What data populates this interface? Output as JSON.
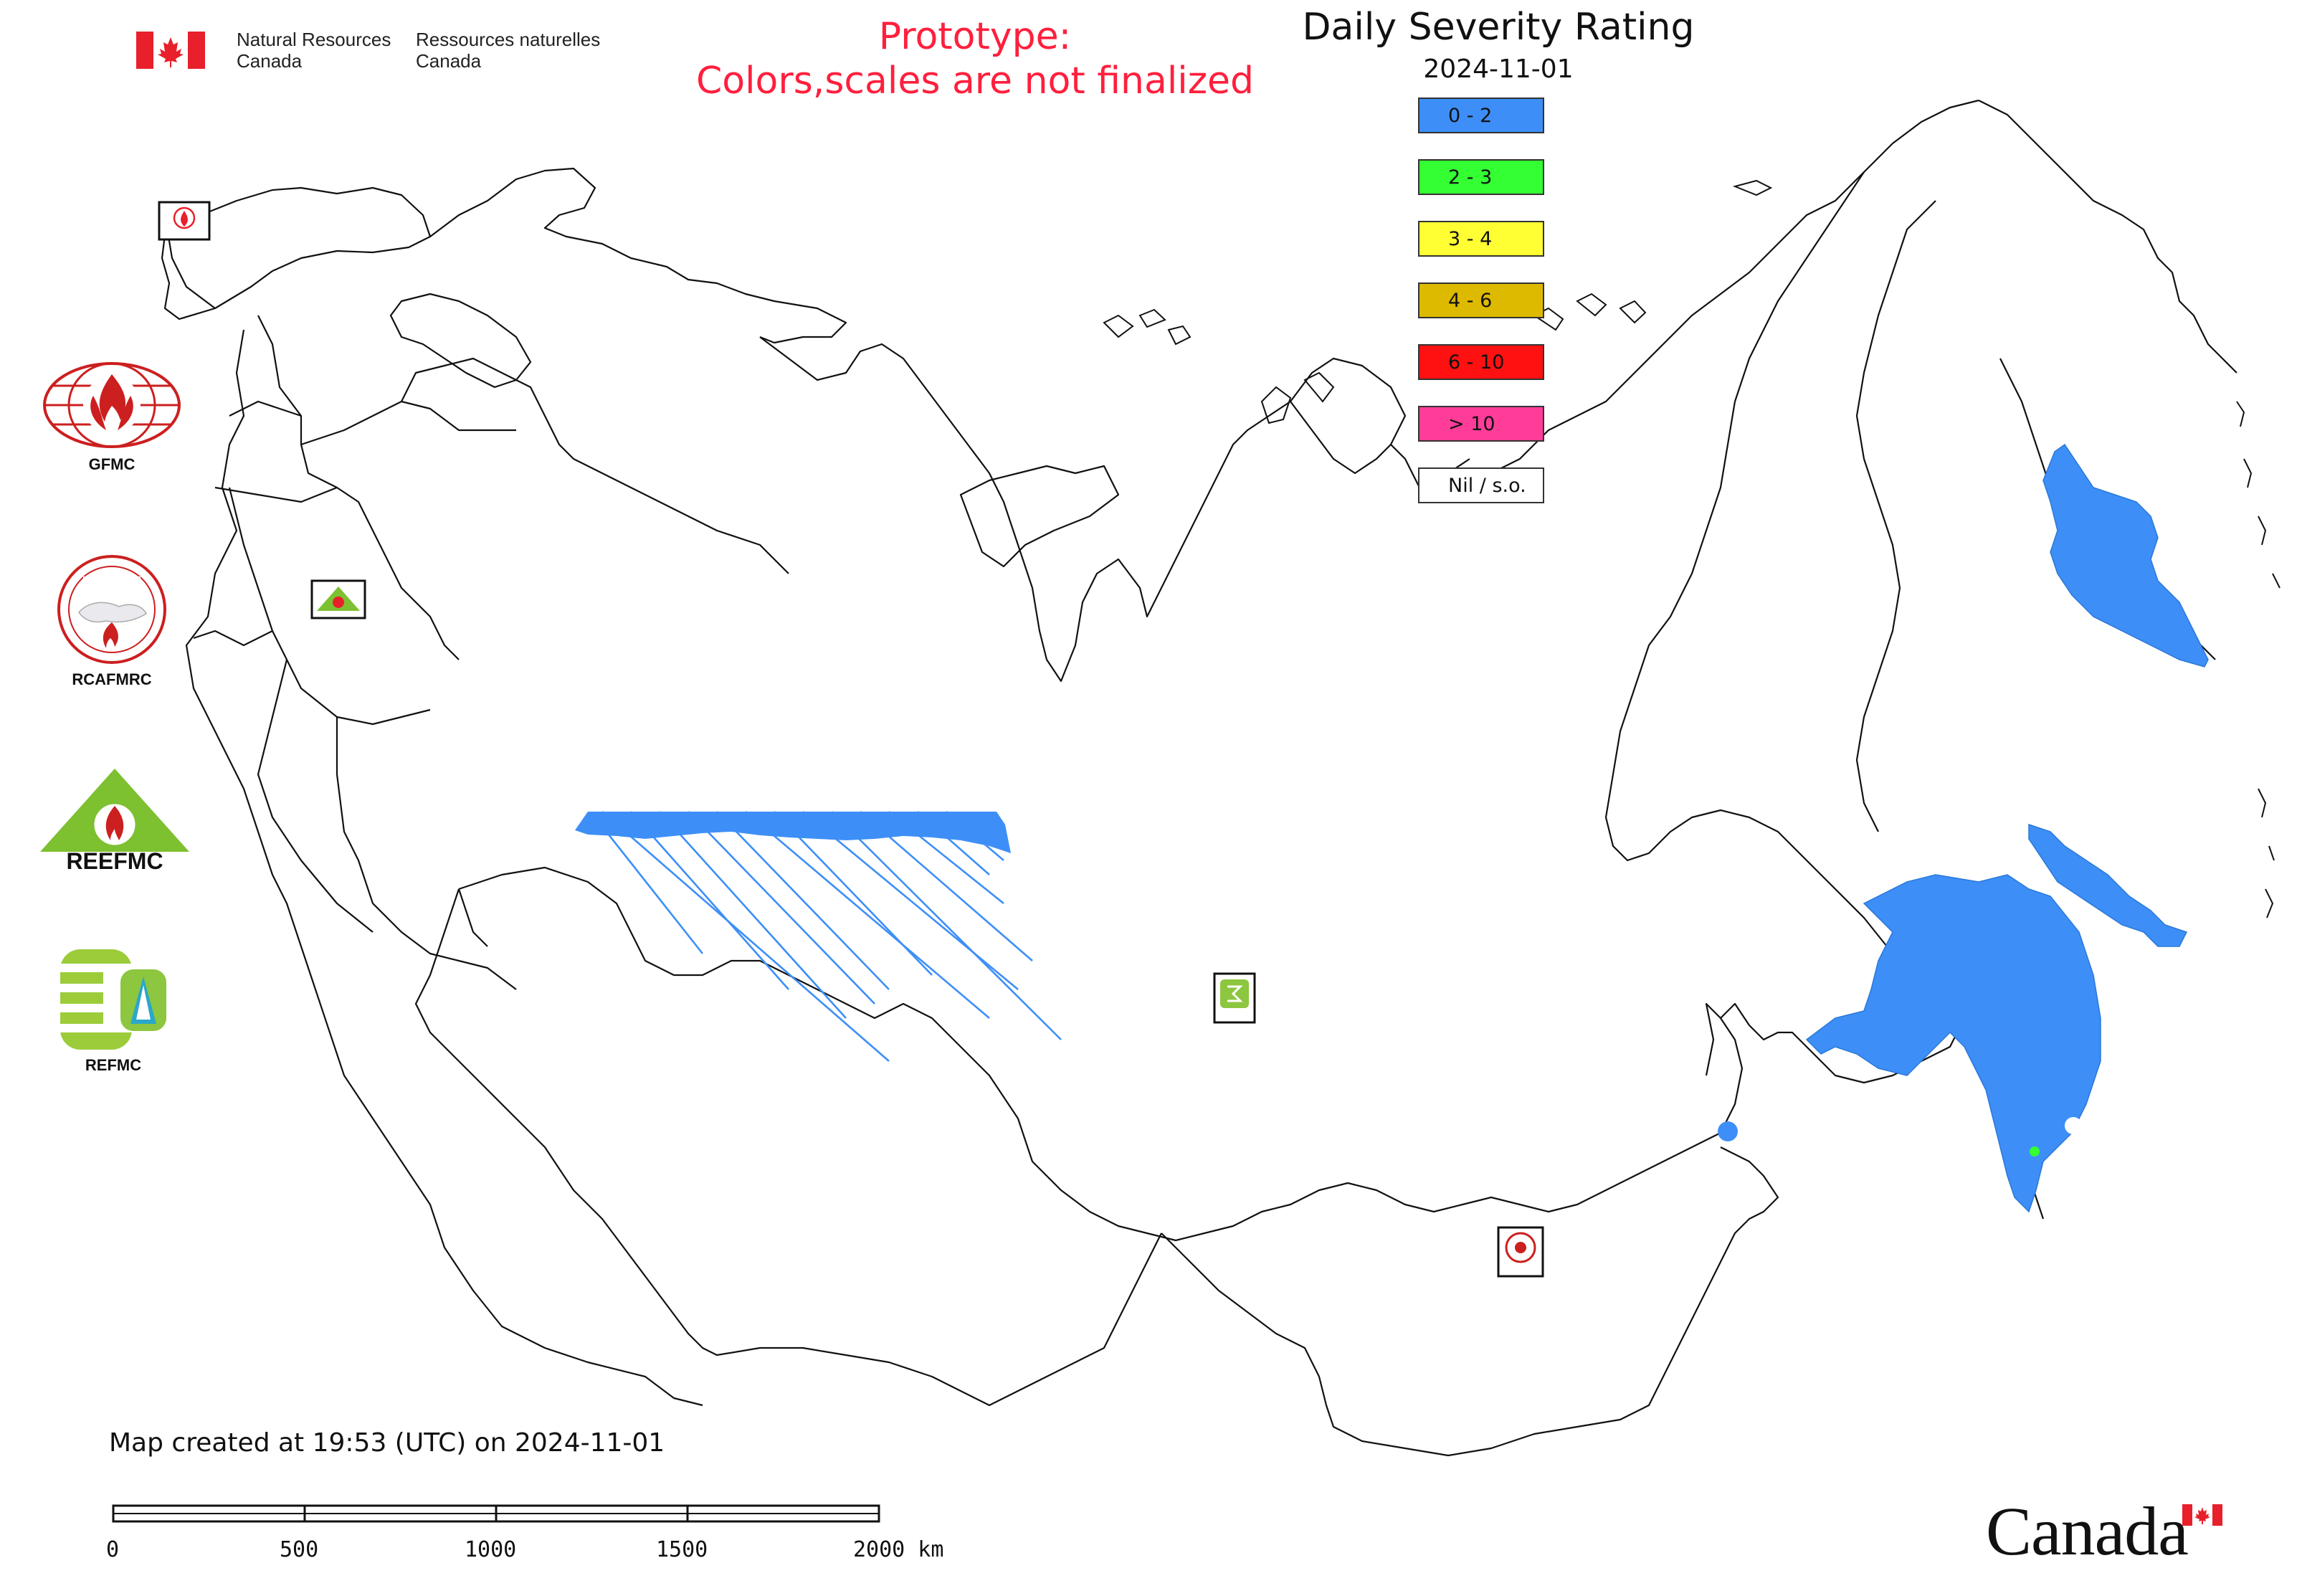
{
  "header": {
    "org_en_line1": "Natural Resources",
    "org_en_line2": "Canada",
    "org_fr_line1": "Ressources naturelles",
    "org_fr_line2": "Canada",
    "prototype_line1": "Prototype:",
    "prototype_line2": "Colors,scales are not finalized"
  },
  "legend": {
    "title": "Daily Severity Rating",
    "date": "2024-11-01",
    "items": [
      {
        "label": "0 - 2",
        "color": "#3d8ff7"
      },
      {
        "label": "2 - 3",
        "color": "#33ff33"
      },
      {
        "label": "3 - 4",
        "color": "#ffff33"
      },
      {
        "label": "4 - 6",
        "color": "#ddb900"
      },
      {
        "label": "6 - 10",
        "color": "#ff1111"
      },
      {
        "label": "> 10",
        "color": "#ff3d99"
      },
      {
        "label": "Nil / s.o.",
        "color": "#ffffff"
      }
    ]
  },
  "partners": [
    {
      "label": "GFMC",
      "icon": "gfmc-logo"
    },
    {
      "label": "RCAFMRC",
      "icon": "rcafmrc-logo"
    },
    {
      "label": "",
      "icon": "reefmc-logo",
      "logo_text": "REEFMC"
    },
    {
      "label": "REFMC",
      "icon": "refmc-logo"
    }
  ],
  "footer": {
    "caption": "Map created at 19:53 (UTC) on 2024-11-01",
    "scale_labels": [
      "0",
      "500",
      "1000",
      "1500",
      "2000 km"
    ],
    "wordmark": "Canada"
  },
  "colors": {
    "rating_low": "#3d8ff7",
    "rating_moderate": "#33ff33",
    "prototype_text": "#ff1f3d",
    "canada_red": "#e8202b"
  }
}
